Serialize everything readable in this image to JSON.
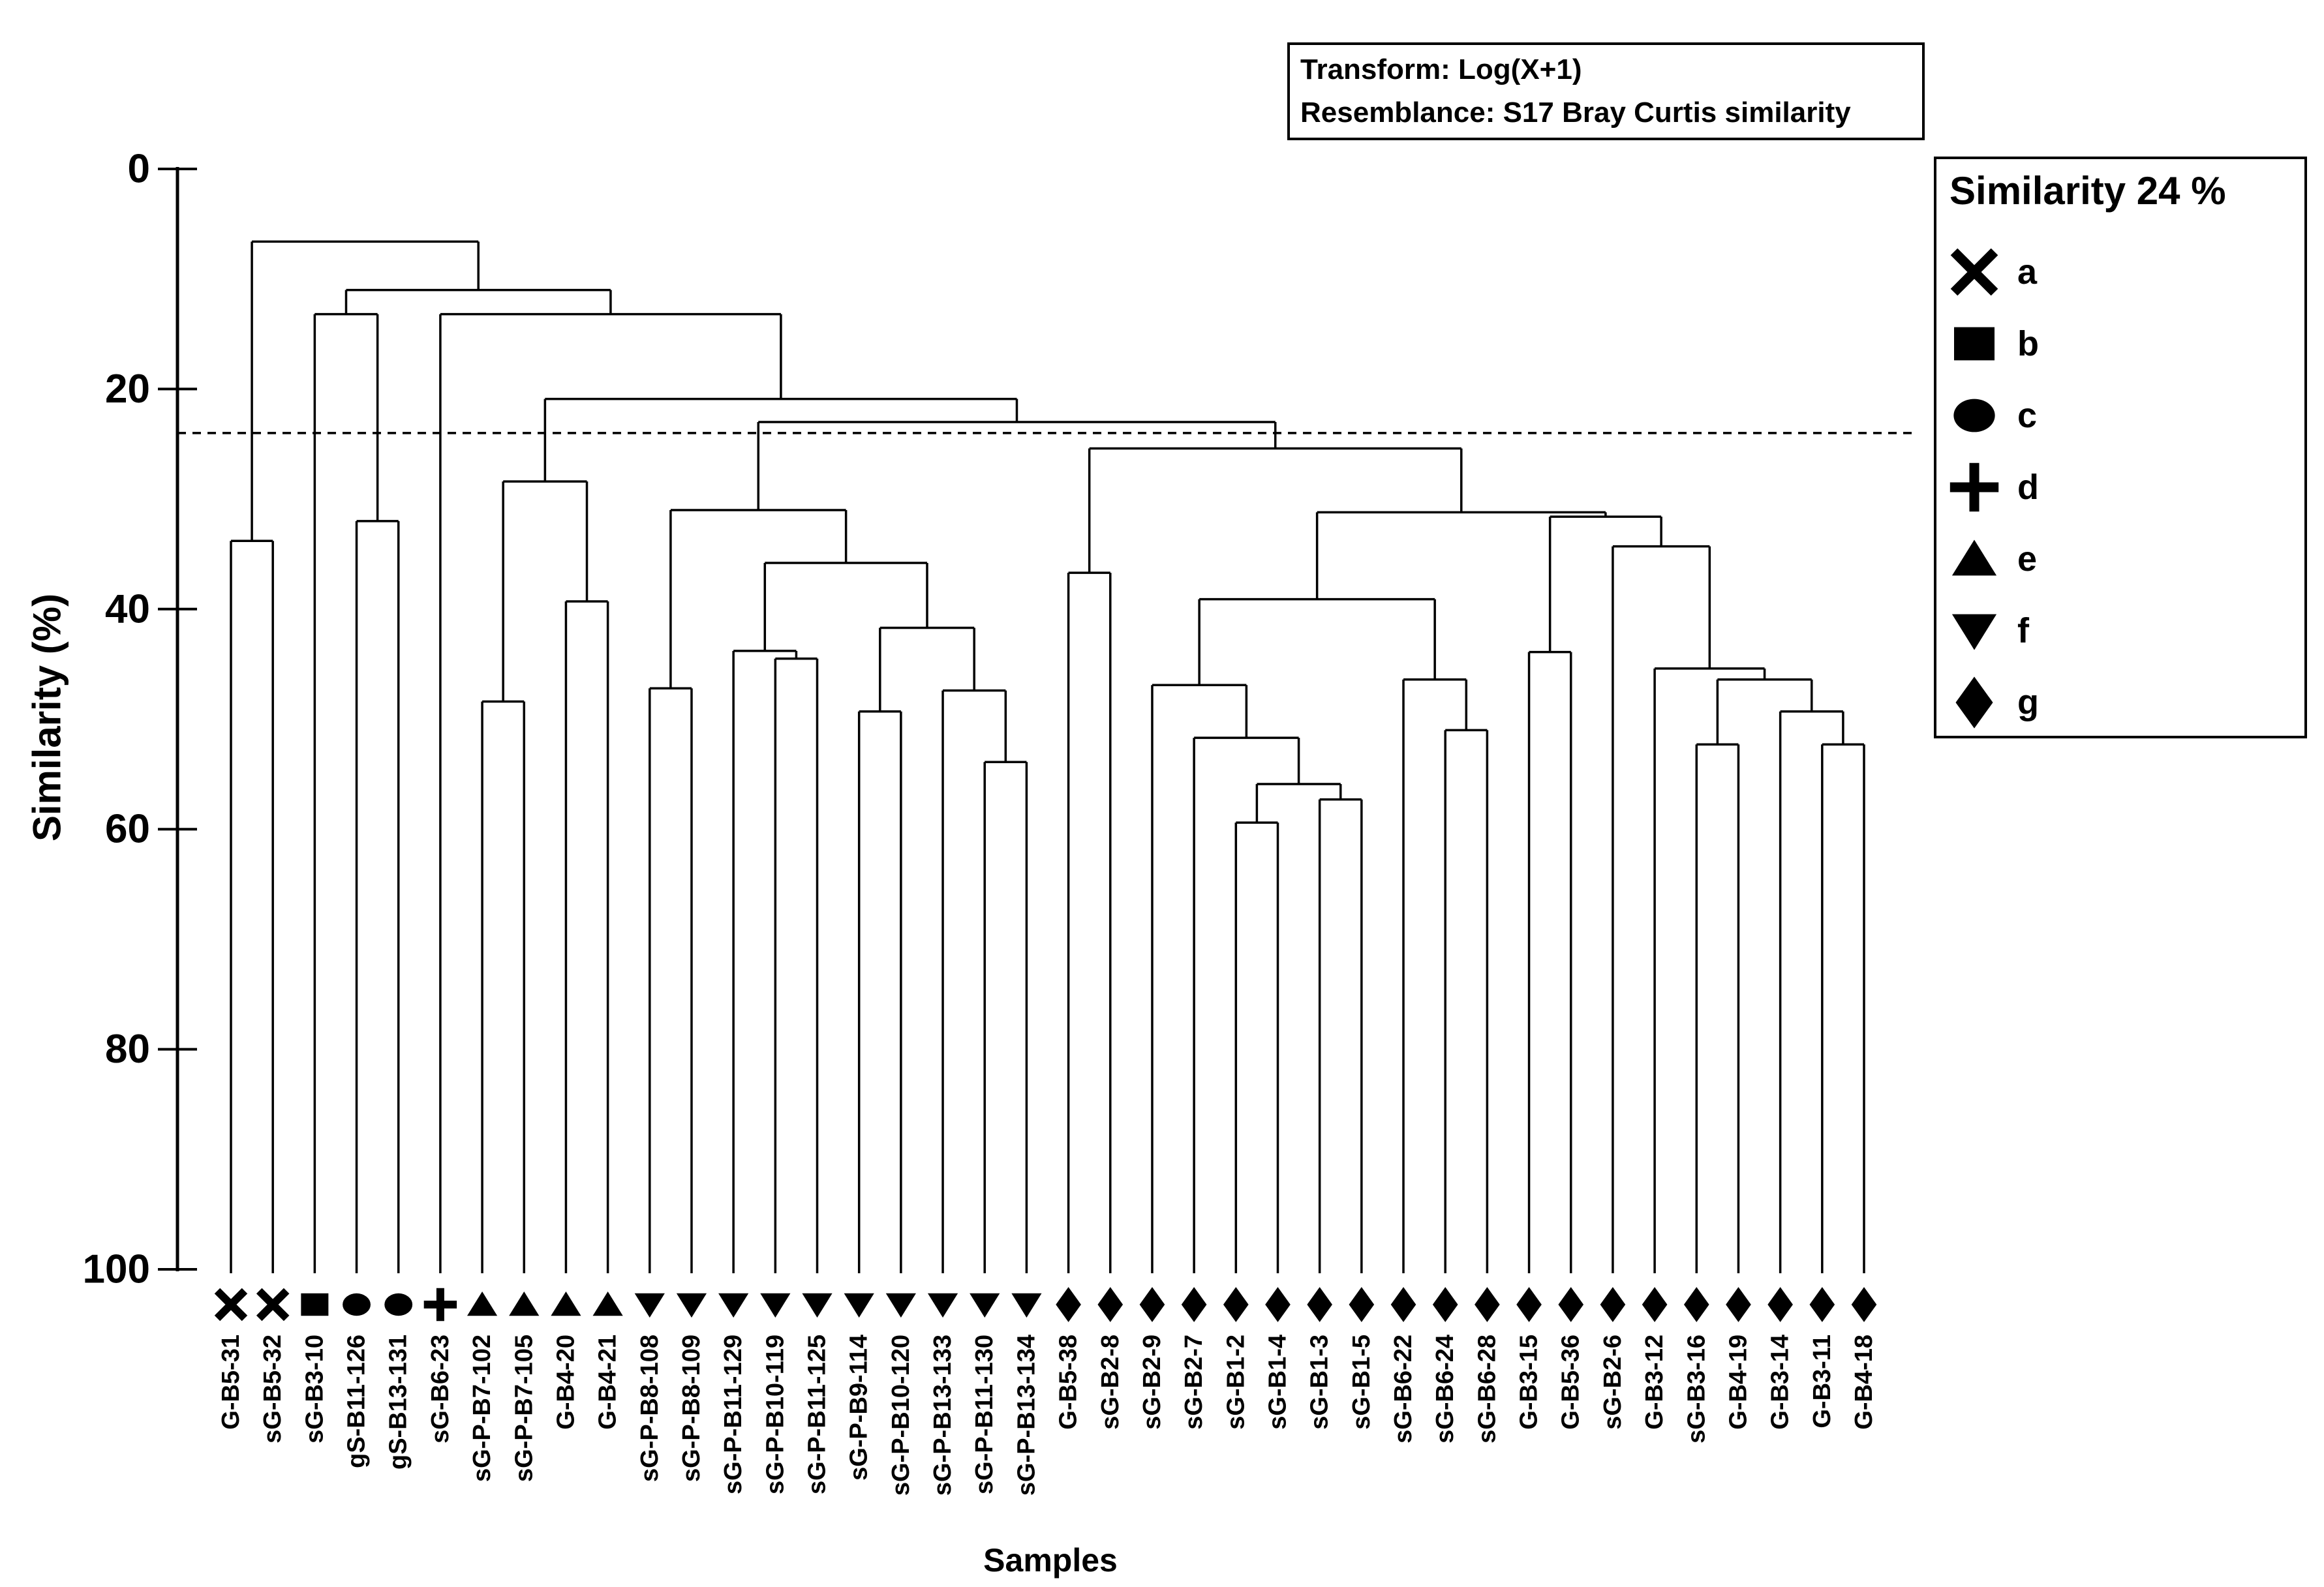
{
  "info_box": {
    "lines": [
      "Transform: Log(X+1)",
      "Resemblance: S17 Bray Curtis similarity"
    ]
  },
  "legend": {
    "title": "Similarity 24 %",
    "items": [
      {
        "symbol": "cross-x-icon",
        "label": "a"
      },
      {
        "symbol": "square-icon",
        "label": "b"
      },
      {
        "symbol": "ellipse-icon",
        "label": "c"
      },
      {
        "symbol": "plus-icon",
        "label": "d"
      },
      {
        "symbol": "triangle-up-icon",
        "label": "e"
      },
      {
        "symbol": "triangle-down-icon",
        "label": "f"
      },
      {
        "symbol": "diamond-icon",
        "label": "g"
      }
    ]
  },
  "chart_data": {
    "type": "dendrogram",
    "orientation": "root-top",
    "ylabel": "Similarity (%)",
    "xlabel": "Samples",
    "y_ticks": [
      0,
      20,
      40,
      60,
      80,
      100
    ],
    "ylim": [
      0,
      100
    ],
    "threshold": {
      "value": 24,
      "line_style": "dashed"
    },
    "colors": {
      "foreground": "#000000",
      "background": "#ffffff"
    },
    "symbol_for_group": {
      "a": "cross-x",
      "b": "square",
      "c": "ellipse",
      "d": "plus",
      "e": "triangle-up",
      "f": "triangle-down",
      "g": "diamond"
    },
    "samples": [
      {
        "label": "G-B5-31",
        "group": "a"
      },
      {
        "label": "sG-B5-32",
        "group": "a"
      },
      {
        "label": "sG-B3-10",
        "group": "b"
      },
      {
        "label": "gS-B11-126",
        "group": "c"
      },
      {
        "label": "gS-B13-131",
        "group": "c"
      },
      {
        "label": "sG-B6-23",
        "group": "d"
      },
      {
        "label": "sG-P-B7-102",
        "group": "e"
      },
      {
        "label": "sG-P-B7-105",
        "group": "e"
      },
      {
        "label": "G-B4-20",
        "group": "e"
      },
      {
        "label": "G-B4-21",
        "group": "e"
      },
      {
        "label": "sG-P-B8-108",
        "group": "f"
      },
      {
        "label": "sG-P-B8-109",
        "group": "f"
      },
      {
        "label": "sG-P-B11-129",
        "group": "f"
      },
      {
        "label": "sG-P-B10-119",
        "group": "f"
      },
      {
        "label": "sG-P-B11-125",
        "group": "f"
      },
      {
        "label": "sG-P-B9-114",
        "group": "f"
      },
      {
        "label": "sG-P-B10-120",
        "group": "f"
      },
      {
        "label": "sG-P-B13-133",
        "group": "f"
      },
      {
        "label": "sG-P-B11-130",
        "group": "f"
      },
      {
        "label": "sG-P-B13-134",
        "group": "f"
      },
      {
        "label": "G-B5-38",
        "group": "g"
      },
      {
        "label": "sG-B2-8",
        "group": "g"
      },
      {
        "label": "sG-B2-9",
        "group": "g"
      },
      {
        "label": "sG-B2-7",
        "group": "g"
      },
      {
        "label": "sG-B1-2",
        "group": "g"
      },
      {
        "label": "sG-B1-4",
        "group": "g"
      },
      {
        "label": "sG-B1-3",
        "group": "g"
      },
      {
        "label": "sG-B1-5",
        "group": "g"
      },
      {
        "label": "sG-B6-22",
        "group": "g"
      },
      {
        "label": "sG-B6-24",
        "group": "g"
      },
      {
        "label": "sG-B6-28",
        "group": "g"
      },
      {
        "label": "G-B3-15",
        "group": "g"
      },
      {
        "label": "G-B5-36",
        "group": "g"
      },
      {
        "label": "sG-B2-6",
        "group": "g"
      },
      {
        "label": "G-B3-12",
        "group": "g"
      },
      {
        "label": "sG-B3-16",
        "group": "g"
      },
      {
        "label": "G-B4-19",
        "group": "g"
      },
      {
        "label": "G-B3-14",
        "group": "g"
      },
      {
        "label": "G-B3-11",
        "group": "g"
      },
      {
        "label": "G-B4-18",
        "group": "g"
      }
    ],
    "merges": {
      "h": 6.6,
      "c": [
        {
          "h": 33.8,
          "c": [
            0,
            1
          ]
        },
        {
          "h": 11.0,
          "c": [
            {
              "h": 13.2,
              "c": [
                2,
                {
                  "h": 32.0,
                  "c": [
                    3,
                    4
                  ]
                }
              ]
            },
            {
              "h": 13.2,
              "c": [
                5,
                {
                  "h": 20.9,
                  "c": [
                    {
                      "h": 28.4,
                      "c": [
                        {
                          "h": 48.4,
                          "c": [
                            6,
                            7
                          ]
                        },
                        {
                          "h": 39.3,
                          "c": [
                            8,
                            9
                          ]
                        }
                      ]
                    },
                    {
                      "h": 23.0,
                      "c": [
                        {
                          "h": 31.0,
                          "c": [
                            {
                              "h": 47.2,
                              "c": [
                                10,
                                11
                              ]
                            },
                            {
                              "h": 35.8,
                              "c": [
                                {
                                  "h": 43.8,
                                  "c": [
                                    12,
                                    {
                                      "h": 44.5,
                                      "c": [
                                        13,
                                        14
                                      ]
                                    }
                                  ]
                                },
                                {
                                  "h": 41.7,
                                  "c": [
                                    {
                                      "h": 49.3,
                                      "c": [
                                        15,
                                        16
                                      ]
                                    },
                                    {
                                      "h": 47.4,
                                      "c": [
                                        17,
                                        {
                                          "h": 53.9,
                                          "c": [
                                            18,
                                            19
                                          ]
                                        }
                                      ]
                                    }
                                  ]
                                }
                              ]
                            }
                          ]
                        },
                        {
                          "h": 25.4,
                          "c": [
                            {
                              "h": 36.7,
                              "c": [
                                20,
                                21
                              ]
                            },
                            {
                              "h": 31.2,
                              "c": [
                                {
                                  "h": 39.1,
                                  "c": [
                                    {
                                      "h": 46.9,
                                      "c": [
                                        22,
                                        {
                                          "h": 51.7,
                                          "c": [
                                            23,
                                            {
                                              "h": 55.9,
                                              "c": [
                                                {
                                                  "h": 59.4,
                                                  "c": [
                                                    24,
                                                    25
                                                  ]
                                                },
                                                {
                                                  "h": 57.3,
                                                  "c": [
                                                    26,
                                                    27
                                                  ]
                                                }
                                              ]
                                            }
                                          ]
                                        }
                                      ]
                                    },
                                    {
                                      "h": 46.4,
                                      "c": [
                                        28,
                                        {
                                          "h": 51.0,
                                          "c": [
                                            29,
                                            30
                                          ]
                                        }
                                      ]
                                    }
                                  ]
                                },
                                {
                                  "h": 31.6,
                                  "c": [
                                    {
                                      "h": 43.9,
                                      "c": [
                                        31,
                                        32
                                      ]
                                    },
                                    {
                                      "h": 34.3,
                                      "c": [
                                        33,
                                        {
                                          "h": 45.4,
                                          "c": [
                                            34,
                                            {
                                              "h": 46.4,
                                              "c": [
                                                {
                                                  "h": 52.3,
                                                  "c": [
                                                    35,
                                                    36
                                                  ]
                                                },
                                                {
                                                  "h": 49.3,
                                                  "c": [
                                                    37,
                                                    {
                                                      "h": 52.3,
                                                      "c": [
                                                        38,
                                                        39
                                                      ]
                                                    }
                                                  ]
                                                }
                                              ]
                                            }
                                          ]
                                        }
                                      ]
                                    }
                                  ]
                                }
                              ]
                            }
                          ]
                        }
                      ]
                    }
                  ]
                }
              ]
            }
          ]
        }
      ]
    }
  }
}
